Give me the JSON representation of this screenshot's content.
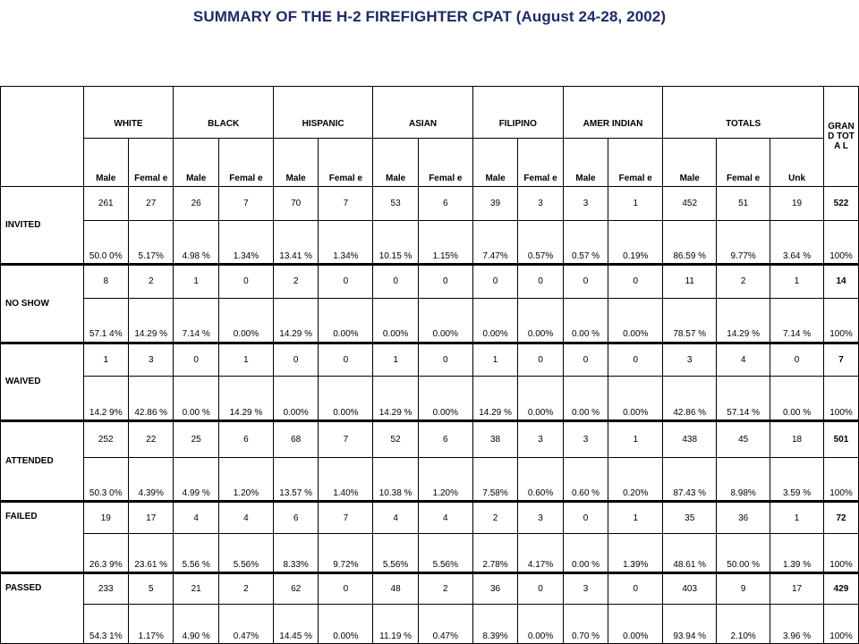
{
  "title": "SUMMARY OF THE H-2 FIREFIGHTER CPAT (August 24-28, 2002)",
  "groups": [
    "WHITE",
    "BLACK",
    "HISPANIC",
    "ASIAN",
    "FILIPINO",
    "AMER INDIAN",
    "TOTALS"
  ],
  "grand_total_header": "GRAN D TOTA L",
  "subheaders": [
    "Male",
    "Femal e",
    "Male",
    "Femal e",
    "Male",
    "Femal e",
    "Male",
    "Femal e",
    "Male",
    "Femal e",
    "Male",
    "Femal e",
    "Male",
    "Femal e",
    "Unk"
  ],
  "rows": [
    {
      "label": "INVITED",
      "counts": [
        "261",
        "27",
        "26",
        "7",
        "70",
        "7",
        "53",
        "6",
        "39",
        "3",
        "3",
        "1",
        "452",
        "51",
        "19",
        "522"
      ],
      "percents": [
        "50.0 0%",
        "5.17%",
        "4.98 %",
        "1.34%",
        "13.41 %",
        "1.34%",
        "10.15 %",
        "1.15%",
        "7.47%",
        "0.57%",
        "0.57 %",
        "0.19%",
        "86.59 %",
        "9.77%",
        "3.64 %",
        "100%"
      ]
    },
    {
      "label": "NO SHOW",
      "counts": [
        "8",
        "2",
        "1",
        "0",
        "2",
        "0",
        "0",
        "0",
        "0",
        "0",
        "0",
        "0",
        "11",
        "2",
        "1",
        "14"
      ],
      "percents": [
        "57.1 4%",
        "14.29 %",
        "7.14 %",
        "0.00%",
        "14.29 %",
        "0.00%",
        "0.00%",
        "0.00%",
        "0.00%",
        "0.00%",
        "0.00 %",
        "0.00%",
        "78.57 %",
        "14.29 %",
        "7.14 %",
        "100%"
      ]
    },
    {
      "label": "WAIVED",
      "counts": [
        "1",
        "3",
        "0",
        "1",
        "0",
        "0",
        "1",
        "0",
        "1",
        "0",
        "0",
        "0",
        "3",
        "4",
        "0",
        "7"
      ],
      "percents": [
        "14.2 9%",
        "42.86 %",
        "0.00 %",
        "14.29 %",
        "0.00%",
        "0.00%",
        "14.29 %",
        "0.00%",
        "14.29 %",
        "0.00%",
        "0.00 %",
        "0.00%",
        "42.86 %",
        "57.14 %",
        "0.00 %",
        "100%"
      ]
    },
    {
      "label": "ATTENDED",
      "counts": [
        "252",
        "22",
        "25",
        "6",
        "68",
        "7",
        "52",
        "6",
        "38",
        "3",
        "3",
        "1",
        "438",
        "45",
        "18",
        "501"
      ],
      "percents": [
        "50.3 0%",
        "4.39%",
        "4.99 %",
        "1.20%",
        "13.57 %",
        "1.40%",
        "10.38 %",
        "1.20%",
        "7.58%",
        "0.60%",
        "0.60 %",
        "0.20%",
        "87.43 %",
        "8.98%",
        "3.59 %",
        "100%"
      ]
    },
    {
      "label": "FAILED",
      "counts": [
        "19",
        "17",
        "4",
        "4",
        "6",
        "7",
        "4",
        "4",
        "2",
        "3",
        "0",
        "1",
        "35",
        "36",
        "1",
        "72"
      ],
      "percents": [
        "26.3 9%",
        "23.61 %",
        "5.56 %",
        "5.56%",
        "8.33%",
        "9.72%",
        "5.56%",
        "5.56%",
        "2.78%",
        "4.17%",
        "0.00 %",
        "1.39%",
        "48.61 %",
        "50.00 %",
        "1.39 %",
        "100%"
      ]
    },
    {
      "label": "PASSED",
      "counts": [
        "233",
        "5",
        "21",
        "2",
        "62",
        "0",
        "48",
        "2",
        "36",
        "0",
        "3",
        "0",
        "403",
        "9",
        "17",
        "429"
      ],
      "percents": [
        "54.3 1%",
        "1.17%",
        "4.90 %",
        "0.47%",
        "14.45 %",
        "0.00%",
        "11.19 %",
        "0.47%",
        "8.39%",
        "0.00%",
        "0.70 %",
        "0.00%",
        "93.94 %",
        "2.10%",
        "3.96 %",
        "100%"
      ]
    }
  ]
}
